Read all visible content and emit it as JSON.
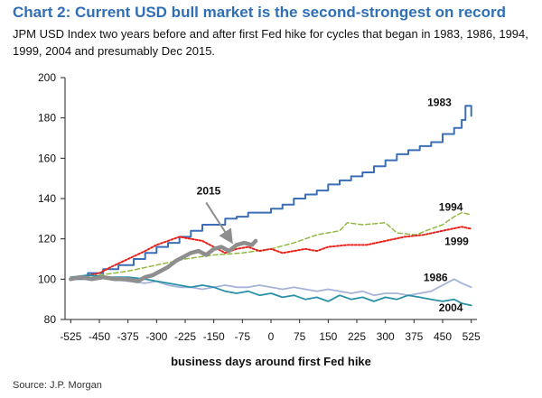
{
  "title": "Chart 2: Current USD bull market is the second-strongest on record",
  "subtitle": "JPM USD Index two years before and after first Fed hike for cycles that began in 1983, 1986, 1994, 1999, 2004 and presumably Dec 2015.",
  "source": "Source: J.P. Morgan",
  "chart_data": {
    "type": "line",
    "xlabel": "business days around first Fed hike",
    "ylabel": "",
    "xlim": [
      -540,
      540
    ],
    "ylim": [
      80,
      200
    ],
    "xticks": [
      -525,
      -450,
      -375,
      -300,
      -225,
      -150,
      -75,
      0,
      75,
      150,
      225,
      300,
      375,
      450,
      525
    ],
    "yticks": [
      80,
      100,
      120,
      140,
      160,
      180,
      200
    ],
    "grid": false,
    "series": [
      {
        "name": "1983",
        "color": "#3a6fb7",
        "width": 2,
        "step": true,
        "x": [
          -525,
          -480,
          -440,
          -400,
          -360,
          -330,
          -300,
          -270,
          -240,
          -210,
          -180,
          -150,
          -120,
          -90,
          -60,
          -30,
          0,
          30,
          60,
          90,
          120,
          150,
          180,
          210,
          240,
          270,
          300,
          330,
          360,
          390,
          420,
          450,
          480,
          500,
          510,
          525
        ],
        "y": [
          100,
          103,
          105,
          107,
          110,
          113,
          116,
          118,
          121,
          124,
          127,
          127,
          130,
          131,
          133,
          133,
          135,
          137,
          140,
          142,
          144,
          147,
          149,
          151,
          153,
          156,
          159,
          162,
          164,
          166,
          168,
          172,
          175,
          179,
          186,
          181
        ]
      },
      {
        "name": "1994",
        "color": "#93b843",
        "width": 1.5,
        "dash": "5,3",
        "x": [
          -525,
          -450,
          -375,
          -300,
          -225,
          -150,
          -75,
          0,
          60,
          120,
          180,
          200,
          240,
          300,
          330,
          380,
          420,
          450,
          480,
          500,
          525
        ],
        "y": [
          100,
          102,
          104,
          107,
          110,
          112,
          113,
          115,
          118,
          122,
          124,
          128,
          127,
          128,
          123,
          122,
          125,
          127,
          131,
          133,
          132
        ]
      },
      {
        "name": "1999",
        "color": "#e8231d",
        "width": 2,
        "dash": "2,2",
        "x": [
          -525,
          -500,
          -450,
          -420,
          -375,
          -330,
          -300,
          -270,
          -240,
          -210,
          -180,
          -150,
          -120,
          -90,
          -60,
          -30,
          0,
          30,
          60,
          90,
          120,
          150,
          200,
          250,
          300,
          350,
          400,
          450,
          500,
          525
        ],
        "y": [
          100,
          101,
          103,
          106,
          110,
          114,
          117,
          119,
          121,
          120,
          119,
          116,
          113,
          115,
          116,
          114,
          115,
          113,
          114,
          115,
          114,
          116,
          117,
          117,
          119,
          121,
          122,
          124,
          126,
          125
        ]
      },
      {
        "name": "1986",
        "color": "#a6b2d8",
        "width": 1.8,
        "x": [
          -525,
          -480,
          -420,
          -375,
          -330,
          -300,
          -270,
          -240,
          -210,
          -180,
          -150,
          -120,
          -90,
          -60,
          -30,
          0,
          30,
          60,
          90,
          120,
          150,
          180,
          210,
          240,
          270,
          300,
          330,
          360,
          390,
          420,
          450,
          480,
          500,
          525
        ],
        "y": [
          100,
          101,
          100,
          99,
          98,
          99,
          97,
          96,
          96,
          95,
          96,
          97,
          96,
          96,
          97,
          96,
          95,
          96,
          95,
          94,
          95,
          94,
          93,
          94,
          92,
          93,
          93,
          92,
          93,
          94,
          97,
          100,
          98,
          96
        ]
      },
      {
        "name": "2004",
        "color": "#2a90a8",
        "width": 1.8,
        "x": [
          -525,
          -480,
          -420,
          -375,
          -330,
          -300,
          -270,
          -240,
          -210,
          -180,
          -150,
          -120,
          -90,
          -60,
          -30,
          0,
          30,
          60,
          90,
          120,
          150,
          180,
          210,
          240,
          270,
          300,
          330,
          360,
          390,
          420,
          450,
          480,
          500,
          525
        ],
        "y": [
          101,
          102,
          101,
          101,
          100,
          99,
          98,
          97,
          96,
          97,
          96,
          94,
          93,
          94,
          92,
          93,
          91,
          92,
          90,
          91,
          89,
          92,
          90,
          91,
          89,
          91,
          90,
          92,
          91,
          90,
          89,
          90,
          88,
          87
        ]
      },
      {
        "name": "2015",
        "color": "#8e8e8e",
        "width": 4.5,
        "x": [
          -525,
          -500,
          -470,
          -440,
          -410,
          -380,
          -350,
          -330,
          -310,
          -290,
          -270,
          -250,
          -230,
          -210,
          -190,
          -170,
          -150,
          -130,
          -110,
          -90,
          -70,
          -50,
          -40
        ],
        "y": [
          100,
          101,
          100,
          101,
          100,
          100,
          99,
          101,
          102,
          104,
          106,
          109,
          111,
          113,
          114,
          112,
          115,
          116,
          114,
          117,
          118,
          117,
          119
        ]
      }
    ],
    "annotations": [
      {
        "text": "1983",
        "x": 410,
        "y": 186
      },
      {
        "text": "1994",
        "x": 440,
        "y": 134
      },
      {
        "text": "1999",
        "x": 455,
        "y": 117
      },
      {
        "text": "1986",
        "x": 400,
        "y": 99
      },
      {
        "text": "2004",
        "x": 440,
        "y": 84
      },
      {
        "text": "2015",
        "x": -195,
        "y": 142
      }
    ],
    "arrow": {
      "from": [
        -170,
        138
      ],
      "to": [
        -105,
        119
      ]
    }
  }
}
